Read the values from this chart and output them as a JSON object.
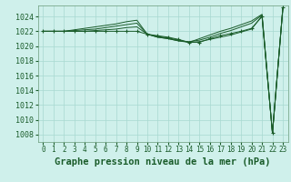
{
  "bg_color": "#cff0eb",
  "grid_color": "#a8d8d0",
  "line_color": "#1a5c2a",
  "marker_color": "#1a5c2a",
  "title": "Graphe pression niveau de la mer (hPa)",
  "ylabel_ticks": [
    1008,
    1010,
    1012,
    1014,
    1016,
    1018,
    1020,
    1022,
    1024
  ],
  "xlim": [
    -0.5,
    23.5
  ],
  "ylim": [
    1007.0,
    1025.5
  ],
  "xticks": [
    0,
    1,
    2,
    3,
    4,
    5,
    6,
    7,
    8,
    9,
    10,
    11,
    12,
    13,
    14,
    15,
    16,
    17,
    18,
    19,
    20,
    21,
    22,
    23
  ],
  "series": [
    [
      1022.0,
      1022.0,
      1022.0,
      1022.0,
      1022.0,
      1022.0,
      1022.0,
      1022.0,
      1022.0,
      1022.0,
      1021.6,
      1021.4,
      1021.2,
      1020.9,
      1020.5,
      1020.5,
      1021.0,
      1021.4,
      1021.7,
      1022.0,
      1022.4,
      1024.0,
      1008.2,
      1025.2
    ],
    [
      1022.0,
      1022.0,
      1022.0,
      1022.0,
      1022.0,
      1022.1,
      1022.2,
      1022.3,
      1022.5,
      1022.6,
      1021.6,
      1021.3,
      1021.1,
      1020.8,
      1020.5,
      1020.6,
      1020.9,
      1021.2,
      1021.5,
      1021.9,
      1022.3,
      1024.1,
      1008.2,
      1025.2
    ],
    [
      1022.0,
      1022.0,
      1022.0,
      1022.1,
      1022.2,
      1022.3,
      1022.5,
      1022.7,
      1022.9,
      1023.1,
      1021.6,
      1021.2,
      1021.0,
      1020.7,
      1020.6,
      1020.8,
      1021.2,
      1021.7,
      1022.1,
      1022.6,
      1023.1,
      1024.2,
      1008.2,
      1025.2
    ],
    [
      1022.0,
      1022.0,
      1022.0,
      1022.2,
      1022.4,
      1022.6,
      1022.8,
      1023.0,
      1023.3,
      1023.5,
      1021.6,
      1021.2,
      1021.0,
      1020.7,
      1020.5,
      1021.0,
      1021.5,
      1022.0,
      1022.4,
      1022.9,
      1023.4,
      1024.3,
      1008.2,
      1025.2
    ]
  ],
  "title_fontsize": 7.5,
  "tick_fontsize": 5.5,
  "title_color": "#1a5c2a",
  "tick_color": "#1a5c2a",
  "spine_color": "#6a9a7a"
}
